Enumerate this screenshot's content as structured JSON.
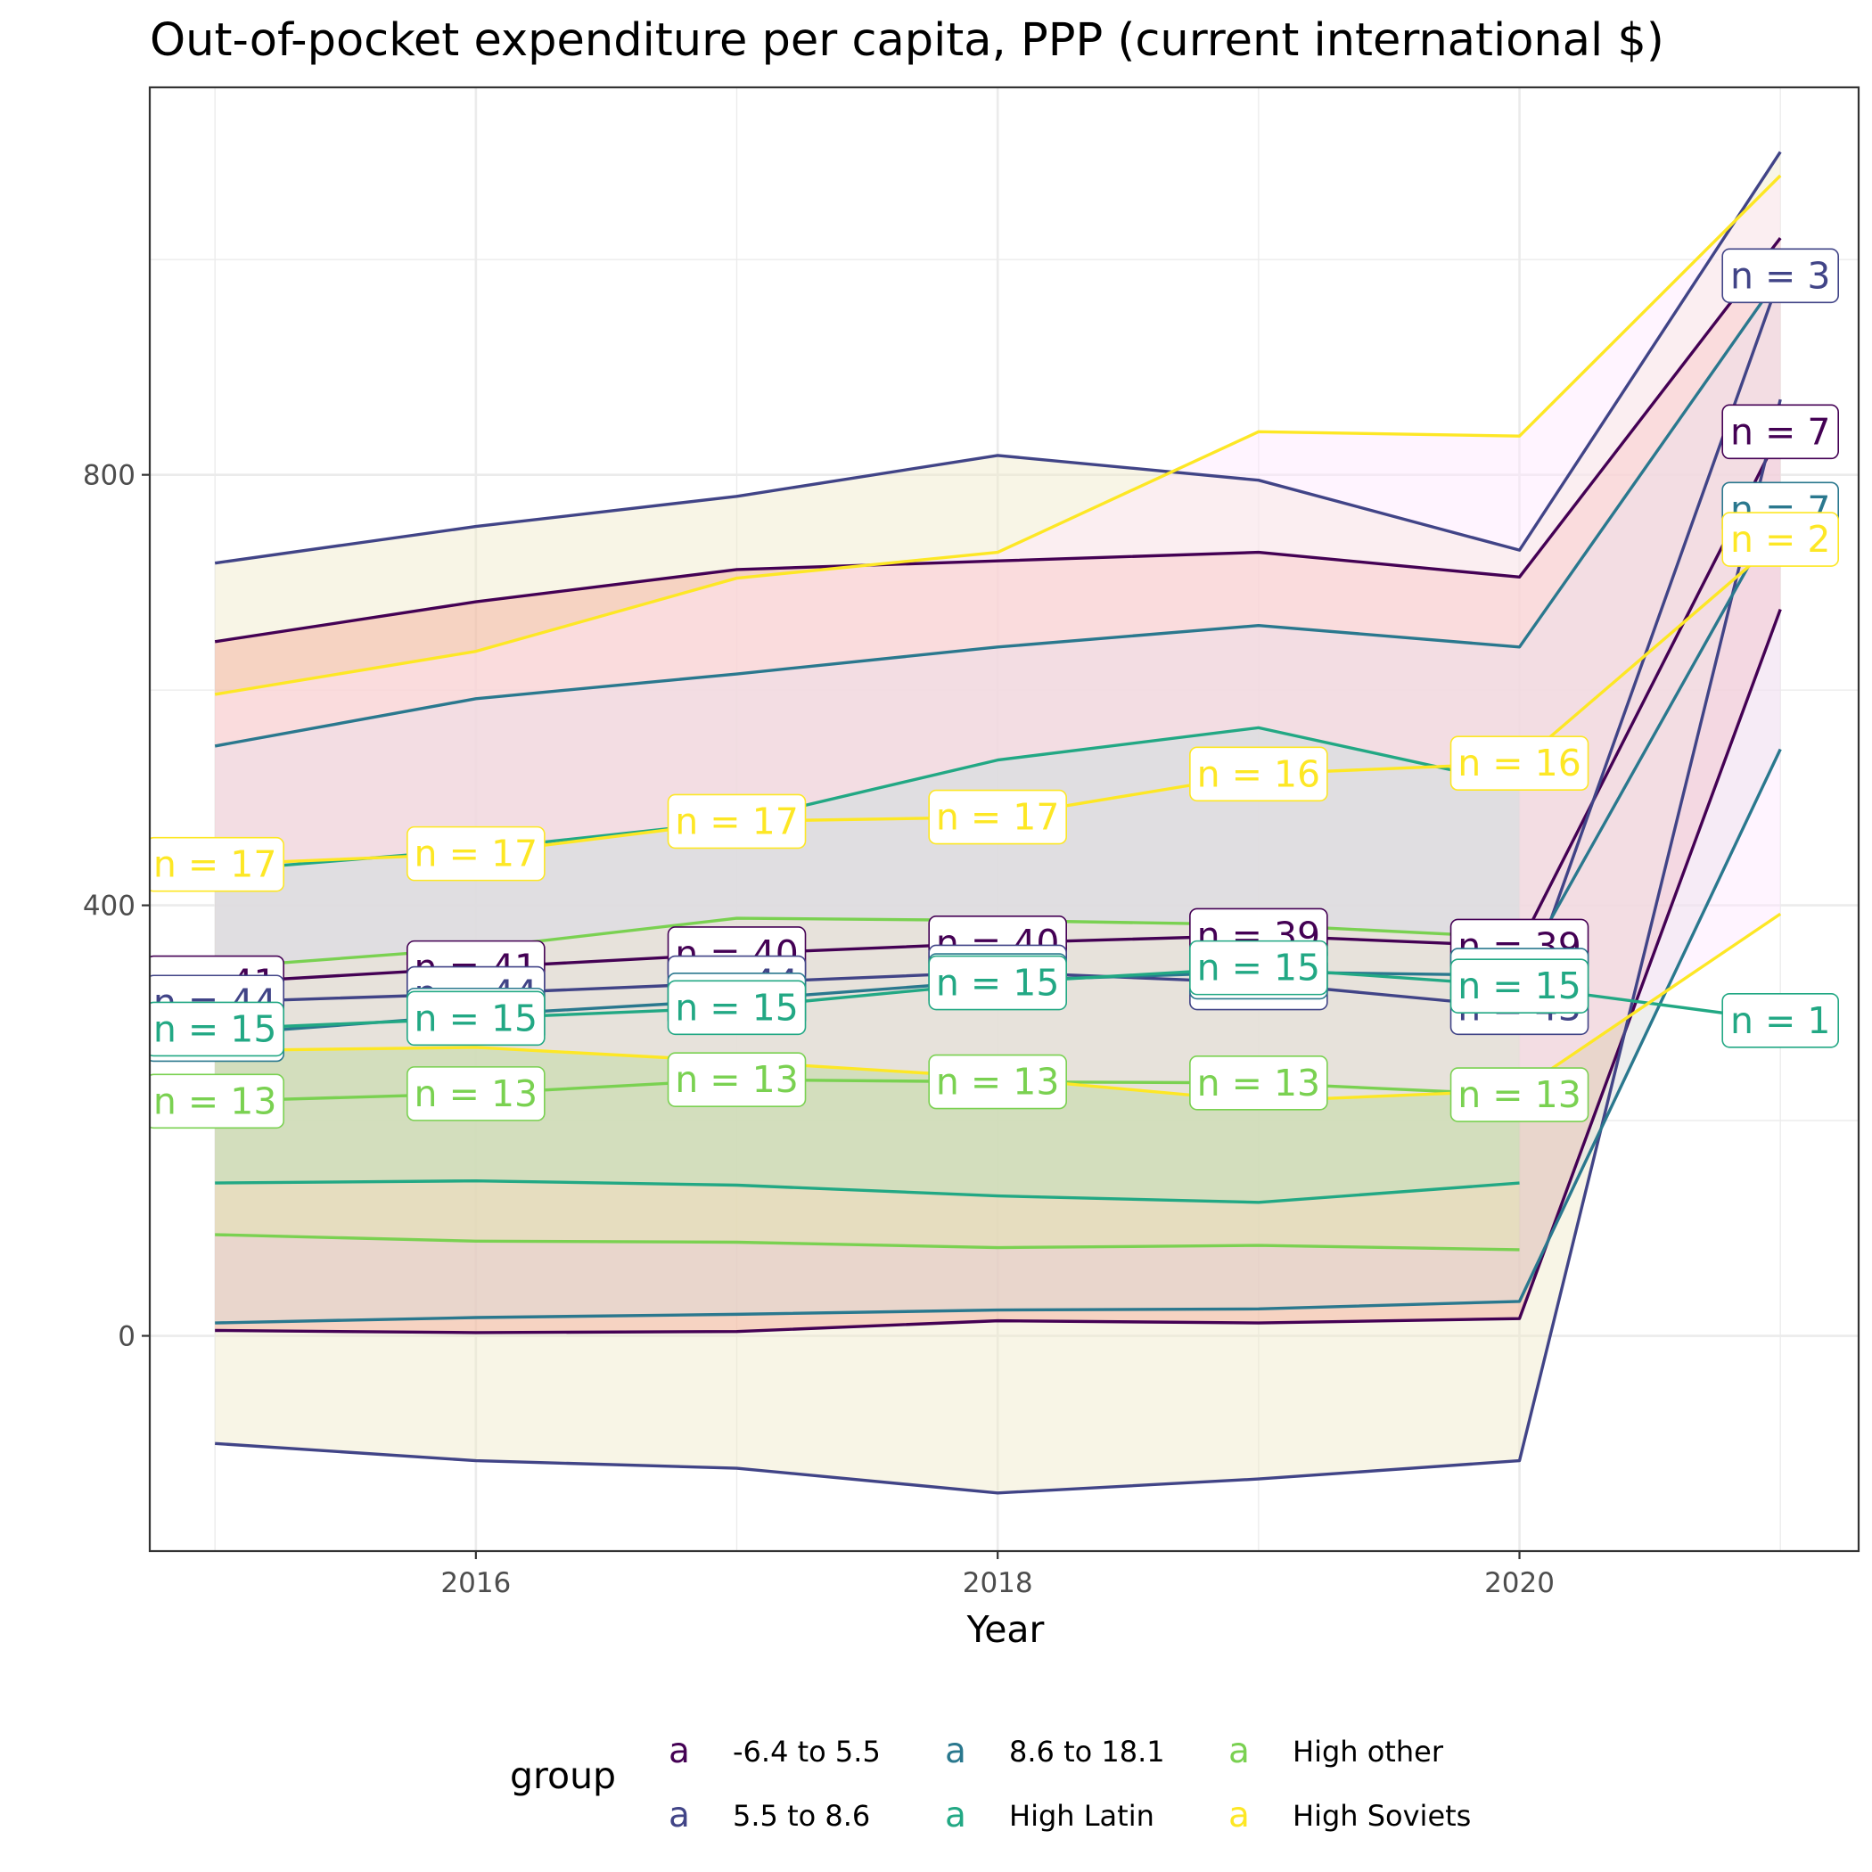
{
  "chart_data": {
    "type": "line",
    "title": "Out-of-pocket expenditure per capita, PPP (current international $)",
    "xlabel": "Year",
    "ylabel": "",
    "xlim": [
      2014.75,
      2021.3
    ],
    "ylim": [
      -200,
      1160
    ],
    "x_ticks": [
      2016,
      2018,
      2020
    ],
    "y_ticks": [
      0,
      400,
      800
    ],
    "x": [
      2015,
      2016,
      2017,
      2018,
      2019,
      2020,
      2021
    ],
    "grid": true,
    "legend": {
      "title": "group",
      "position": "bottom",
      "key_glyph": "a"
    },
    "series": [
      {
        "name": "-6.4 to 5.5",
        "color": "#440154",
        "fill": "#f8766d",
        "mean": [
          328,
          342,
          355,
          365,
          372,
          362,
          840
        ],
        "upper": [
          645,
          682,
          712,
          720,
          728,
          705,
          1020
        ],
        "lower": [
          5,
          3,
          4,
          14,
          12,
          16,
          675
        ],
        "n_labels": [
          "n = 41",
          "n = 41",
          "n = 40",
          "n = 40",
          "n = 39",
          "n = 39",
          "n = 7"
        ]
      },
      {
        "name": "5.5 to 8.6",
        "color": "#414487",
        "fill": "#f0e8c8",
        "mean": [
          310,
          318,
          328,
          338,
          328,
          305,
          985
        ],
        "upper": [
          718,
          752,
          780,
          818,
          795,
          730,
          1100
        ],
        "lower": [
          -100,
          -116,
          -123,
          -146,
          -133,
          -116,
          870
        ],
        "n_labels": [
          "n = 44",
          "n = 44",
          "n = 44",
          "n = 43",
          "n = 43",
          "n = 43",
          "n = 3"
        ]
      },
      {
        "name": "8.6 to 18.1",
        "color": "#2a788e",
        "fill": "#d9d9d9",
        "mean": [
          280,
          298,
          312,
          330,
          338,
          335,
          768
        ],
        "upper": [
          548,
          592,
          615,
          640,
          660,
          640,
          985
        ],
        "lower": [
          12,
          17,
          20,
          24,
          25,
          32,
          545
        ],
        "n_labels": [
          "n = 30",
          "n = 30",
          "n = 30",
          "n = 30",
          "n = 30",
          "n = 30",
          "n = 7"
        ]
      },
      {
        "name": "High Latin",
        "color": "#22a884",
        "fill": "#9ed9c6",
        "mean": [
          285,
          295,
          305,
          328,
          342,
          325,
          293
        ],
        "upper": [
          432,
          452,
          478,
          535,
          565,
          512,
          null
        ],
        "lower": [
          142,
          144,
          140,
          130,
          124,
          142,
          null
        ],
        "n_labels": [
          "n = 15",
          "n = 15",
          "n = 15",
          "n = 15",
          "n = 15",
          "n = 15",
          "n = 1"
        ]
      },
      {
        "name": "High other",
        "color": "#7ad151",
        "fill": "#e3e6b0",
        "mean": [
          218,
          225,
          238,
          236,
          235,
          224,
          null
        ],
        "upper": [
          342,
          360,
          388,
          386,
          382,
          370,
          null
        ],
        "lower": [
          94,
          88,
          87,
          82,
          84,
          80,
          null
        ],
        "n_labels": [
          "n = 13",
          "n = 13",
          "n = 13",
          "n = 13",
          "n = 13",
          "n = 13",
          ""
        ]
      },
      {
        "name": "High Soviets",
        "color": "#fde725",
        "fill": "#ffe6ff",
        "mean": [
          438,
          448,
          478,
          482,
          522,
          532,
          740
        ],
        "upper": [
          596,
          636,
          704,
          728,
          840,
          836,
          1078
        ],
        "lower": [
          265,
          268,
          255,
          240,
          218,
          228,
          392
        ],
        "n_labels": [
          "n = 17",
          "n = 17",
          "n = 17",
          "n = 17",
          "n = 16",
          "n = 16",
          "n = 2"
        ]
      }
    ]
  }
}
